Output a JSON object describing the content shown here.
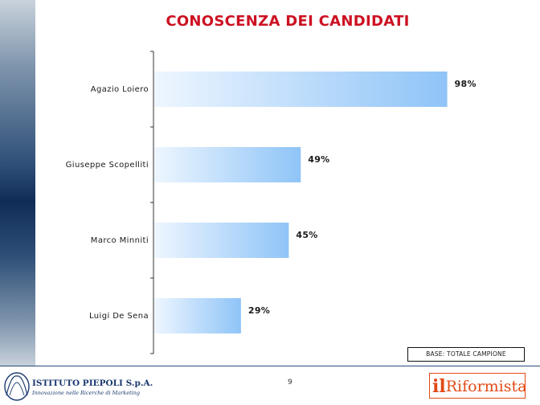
{
  "title": "CONOSCENZA DEI CANDIDATI",
  "base_note": "BASE: TOTALE CAMPIONE",
  "page_number": "9",
  "footer": {
    "left_logo": {
      "name": "ISTITUTO PIEPOLI S.p.A.",
      "tagline": "Innovazione nelle Ricerche di Marketing",
      "color": "#1c3a70"
    },
    "right_logo": {
      "prefix": "il",
      "name": "Riformista",
      "color": "#e24a14"
    }
  },
  "chart_data": {
    "type": "bar",
    "orientation": "horizontal",
    "categories": [
      "Agazio Loiero",
      "Giuseppe Scopelliti",
      "Marco Minniti",
      "Luigi De Sena"
    ],
    "values": [
      98,
      49,
      45,
      29
    ],
    "value_labels": [
      "98%",
      "49%",
      "45%",
      "29%"
    ],
    "title": "CONOSCENZA DEI CANDIDATI",
    "xlim": [
      0,
      100
    ],
    "grid": false,
    "legend": "none",
    "bar_gradient": [
      "#eef6ff",
      "#8fc4f7"
    ]
  }
}
